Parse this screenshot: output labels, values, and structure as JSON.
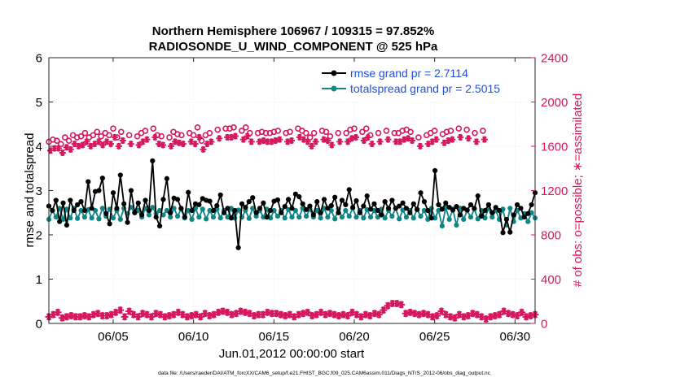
{
  "chart_data": {
    "type": "line",
    "title_line1": "Northern Hemisphere 106967 / 109315 = 97.852%",
    "title_line2": "RADIOSONDE_U_WIND_COMPONENT @ 525 hPa",
    "xlabel": "Jun.01,2012 00:00:00 start",
    "ylabel_left": "rmse and totalspread",
    "ylabel_right": "# of obs: o=possible; ∗=assimilated",
    "footer": "data file: /Users/raeder/DAI/ATM_forcXX/CAM6_setup/f.e21.FHIST_BGC.f09_025.CAM6assim.011/Diags_NTrS_2012-06/obs_diag_output.nc",
    "x_range_days": [
      1,
      31.25
    ],
    "ylim_left": [
      0,
      6
    ],
    "ylim_right": [
      0,
      2400
    ],
    "left_ticks": [
      "0",
      "1",
      "2",
      "3",
      "4",
      "5",
      "6"
    ],
    "right_ticks": [
      "0",
      "400",
      "800",
      "1200",
      "1600",
      "2000",
      "2400"
    ],
    "x_ticks": [
      {
        "day": 5,
        "label": "06/05"
      },
      {
        "day": 10,
        "label": "06/10"
      },
      {
        "day": 15,
        "label": "06/15"
      },
      {
        "day": 20,
        "label": "06/20"
      },
      {
        "day": 25,
        "label": "06/25"
      },
      {
        "day": 30,
        "label": "06/30"
      }
    ],
    "colors": {
      "rmse": "#000000",
      "spread": "#0f8585",
      "obs": "#d6175f",
      "legend_text": "#1f4fe0"
    },
    "legend": [
      {
        "label": "rmse grand pr = 2.7114"
      },
      {
        "label": "totalspread grand pr = 2.5015"
      }
    ],
    "series": [
      {
        "name": "rmse",
        "axis": "left",
        "values": [
          2.65,
          2.55,
          2.78,
          2.3,
          2.72,
          2.22,
          2.78,
          2.55,
          2.68,
          2.75,
          2.55,
          3.2,
          2.6,
          2.98,
          3.0,
          3.28,
          2.48,
          2.25,
          2.95,
          2.6,
          3.35,
          2.7,
          2.28,
          3.0,
          2.5,
          2.72,
          2.45,
          2.78,
          2.55,
          3.67,
          2.4,
          2.2,
          2.8,
          3.27,
          2.5,
          2.83,
          2.8,
          2.6,
          2.4,
          2.96,
          2.55,
          2.7,
          2.68,
          2.82,
          2.78,
          2.76,
          2.55,
          2.66,
          2.9,
          2.5,
          2.6,
          2.38,
          2.55,
          1.71,
          2.7,
          2.62,
          2.75,
          2.84,
          2.5,
          2.6,
          2.72,
          2.4,
          2.55,
          2.76,
          2.79,
          2.5,
          2.64,
          2.8,
          2.6,
          2.92,
          2.86,
          2.7,
          2.57,
          2.65,
          2.45,
          2.75,
          2.5,
          2.8,
          2.6,
          2.66,
          2.85,
          2.5,
          2.78,
          2.68,
          3.02,
          2.62,
          2.77,
          2.5,
          2.65,
          2.88,
          2.58,
          2.7,
          2.55,
          2.45,
          2.75,
          2.6,
          2.78,
          2.6,
          2.65,
          2.72,
          2.6,
          2.5,
          2.7,
          2.57,
          2.95,
          2.75,
          2.55,
          2.38,
          3.45,
          2.68,
          2.58,
          2.72,
          2.62,
          2.56,
          2.64,
          2.45,
          2.6,
          2.56,
          2.68,
          2.6,
          2.88,
          2.42,
          2.55,
          2.68,
          2.5,
          2.62,
          2.55,
          2.05,
          2.35,
          2.06,
          2.45,
          2.68,
          2.6,
          2.4,
          2.48,
          2.68,
          2.95
        ]
      },
      {
        "name": "totalspread",
        "axis": "left",
        "values": [
          2.35,
          2.55,
          2.4,
          2.6,
          2.35,
          2.58,
          2.38,
          2.6,
          2.37,
          2.55,
          2.4,
          2.57,
          2.38,
          2.55,
          2.36,
          2.6,
          2.42,
          2.58,
          2.38,
          2.55,
          2.35,
          2.6,
          2.48,
          2.62,
          2.5,
          2.55,
          2.4,
          2.6,
          2.45,
          2.62,
          2.48,
          2.55,
          2.45,
          2.55,
          2.4,
          2.6,
          2.42,
          2.58,
          2.38,
          2.55,
          2.35,
          2.6,
          2.4,
          2.58,
          2.36,
          2.55,
          2.4,
          2.58,
          2.38,
          2.55,
          2.4,
          2.6,
          2.38,
          2.56,
          2.4,
          2.55,
          2.37,
          2.6,
          2.42,
          2.55,
          2.4,
          2.58,
          2.38,
          2.55,
          2.42,
          2.55,
          2.38,
          2.57,
          2.4,
          2.55,
          2.4,
          2.6,
          2.42,
          2.58,
          2.4,
          2.55,
          2.38,
          2.6,
          2.4,
          2.55,
          2.36,
          2.58,
          2.4,
          2.55,
          2.42,
          2.6,
          2.4,
          2.55,
          2.38,
          2.57,
          2.4,
          2.55,
          2.4,
          2.58,
          2.38,
          2.55,
          2.42,
          2.6,
          2.36,
          2.56,
          2.4,
          2.55,
          2.38,
          2.58,
          2.42,
          2.55,
          2.35,
          2.6,
          2.38,
          2.55,
          2.2,
          2.62,
          2.35,
          2.58,
          2.22,
          2.6,
          2.35,
          2.55,
          2.4,
          2.58,
          2.36,
          2.55,
          2.38,
          2.6,
          2.4,
          2.55,
          2.35,
          2.58,
          2.22,
          2.6,
          2.3,
          2.55,
          2.38,
          2.48,
          2.3,
          2.5,
          2.38
        ]
      },
      {
        "name": "obs_possible",
        "axis": "right",
        "values": [
          1640,
          1660,
          1650,
          1620,
          1680,
          1650,
          1700,
          1680,
          1690,
          1720,
          1680,
          1700,
          1730,
          1690,
          1720,
          1700,
          1760,
          1680,
          1730,
          1700,
          1690,
          1720,
          1740,
          1760,
          1700,
          1690,
          1680,
          1730,
          1710,
          1700,
          1720,
          1700,
          1770,
          1650,
          1700,
          1720,
          1750,
          1760,
          1760,
          1770,
          1740,
          1770,
          1720,
          1720,
          1730,
          1720,
          1720,
          1730,
          1740,
          1720,
          1730,
          1760,
          1740,
          1720,
          1680,
          1720,
          1740,
          1730,
          1690,
          1720,
          1720,
          1750,
          1760,
          1730,
          1760,
          1700,
          1720,
          1740,
          1720,
          1720,
          1740,
          1750,
          1730,
          1680,
          1700,
          1720,
          1740,
          1710,
          1730,
          1740,
          1760,
          1750,
          1720,
          1740
        ],
        "days": [
          1,
          1.25,
          1.5,
          1.75,
          2,
          2.25,
          2.5,
          2.75,
          3,
          3.25,
          3.5,
          3.75,
          4,
          4.25,
          4.5,
          4.75,
          5,
          5.25,
          5.5,
          6,
          6.5,
          6.75,
          7,
          7.5,
          7.75,
          8,
          8.5,
          8.75,
          9,
          9.25,
          9.75,
          10,
          10.25,
          10.5,
          10.75,
          11,
          11.5,
          12,
          12.25,
          12.5,
          13,
          13.25,
          13.5,
          14,
          14.25,
          14.5,
          14.75,
          15,
          15.25,
          15.75,
          16,
          16.5,
          16.75,
          17,
          17.25,
          17.5,
          18,
          18.25,
          18.5,
          19,
          19.5,
          19.75,
          20,
          20.5,
          20.75,
          21,
          21.5,
          22,
          22.5,
          22.75,
          23,
          23.25,
          23.5,
          24,
          24.5,
          24.75,
          25,
          25.5,
          25.75,
          26,
          26.5,
          27,
          27.5,
          28
        ]
      },
      {
        "name": "obs_assimilated",
        "axis": "right",
        "values": [
          1620,
          1640,
          1640,
          1600,
          1650,
          1630,
          1680,
          1660,
          1670,
          1700,
          1660,
          1680,
          1700,
          1670,
          1700,
          1680,
          1740,
          1660,
          1710,
          1680,
          1670,
          1700,
          1720,
          1740,
          1680,
          1670,
          1660,
          1700,
          1690,
          1680,
          1700,
          1680,
          1740,
          1630,
          1680,
          1700,
          1730,
          1740,
          1740,
          1750,
          1720,
          1750,
          1700,
          1700,
          1710,
          1700,
          1700,
          1710,
          1720,
          1700,
          1710,
          1740,
          1720,
          1700,
          1660,
          1700,
          1720,
          1710,
          1670,
          1700,
          1700,
          1730,
          1740,
          1710,
          1740,
          1680,
          1700,
          1720,
          1700,
          1700,
          1720,
          1730,
          1710,
          1660,
          1680,
          1700,
          1720,
          1690,
          1710,
          1720,
          1740,
          1730,
          1700,
          1720
        ]
      },
      {
        "name": "obs_low",
        "axis": "right",
        "values": [
          60,
          80,
          100,
          50,
          60,
          70,
          60,
          60,
          70,
          60,
          80,
          90,
          70,
          70,
          80,
          100,
          120,
          60,
          110,
          80,
          60,
          90,
          80,
          60,
          90,
          80,
          60,
          70,
          80,
          100,
          80,
          60,
          70,
          80,
          60,
          90,
          70,
          80,
          100,
          110,
          100,
          80,
          90,
          110,
          100,
          90,
          70,
          80,
          80,
          100,
          90,
          90,
          80,
          70,
          80,
          60,
          80,
          90,
          100,
          70,
          80,
          100,
          80,
          90,
          80,
          70,
          80,
          70,
          100,
          80,
          60,
          80,
          70,
          90,
          80,
          120,
          160,
          180,
          180,
          170,
          90,
          100,
          90,
          80,
          90,
          80,
          60,
          70,
          110,
          80,
          60,
          50,
          80,
          60,
          70,
          90,
          80,
          60,
          40,
          60,
          70,
          80,
          110,
          90,
          80,
          70,
          100,
          60,
          70,
          80
        ]
      }
    ]
  }
}
